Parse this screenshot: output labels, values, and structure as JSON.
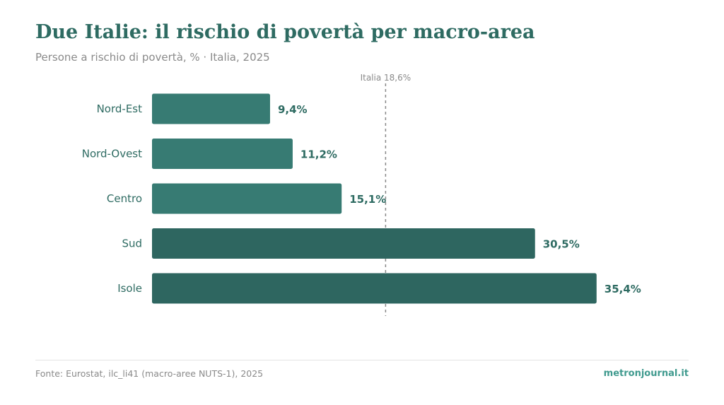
{
  "title": "Due Italie: il rischio di povertà per macro-area",
  "subtitle": "Persone a rischio di povertà, % · Italia, 2025",
  "source": "Fonte: Eurostat, ilc_li41 (macro-aree NUTS-1), 2025",
  "brand": "metronjournal.it",
  "chart_data": {
    "type": "bar",
    "orientation": "horizontal",
    "categories": [
      "Nord-Est",
      "Nord-Ovest",
      "Centro",
      "Sud",
      "Isole"
    ],
    "values": [
      9.4,
      11.2,
      15.1,
      30.5,
      35.4
    ],
    "value_labels": [
      "9,4%",
      "11,2%",
      "15,1%",
      "30,5%",
      "35,4%"
    ],
    "xlim": [
      0,
      42
    ],
    "grid": false,
    "reference_line": {
      "value": 18.6,
      "label": "Italia 18,6%"
    },
    "colors": {
      "north_center": "#377b73",
      "south_islands": "#2e6660",
      "label": "#2e6b62",
      "reference": "#8a8a8a"
    },
    "bar_color_groups": [
      "north_center",
      "north_center",
      "north_center",
      "south_islands",
      "south_islands"
    ]
  }
}
